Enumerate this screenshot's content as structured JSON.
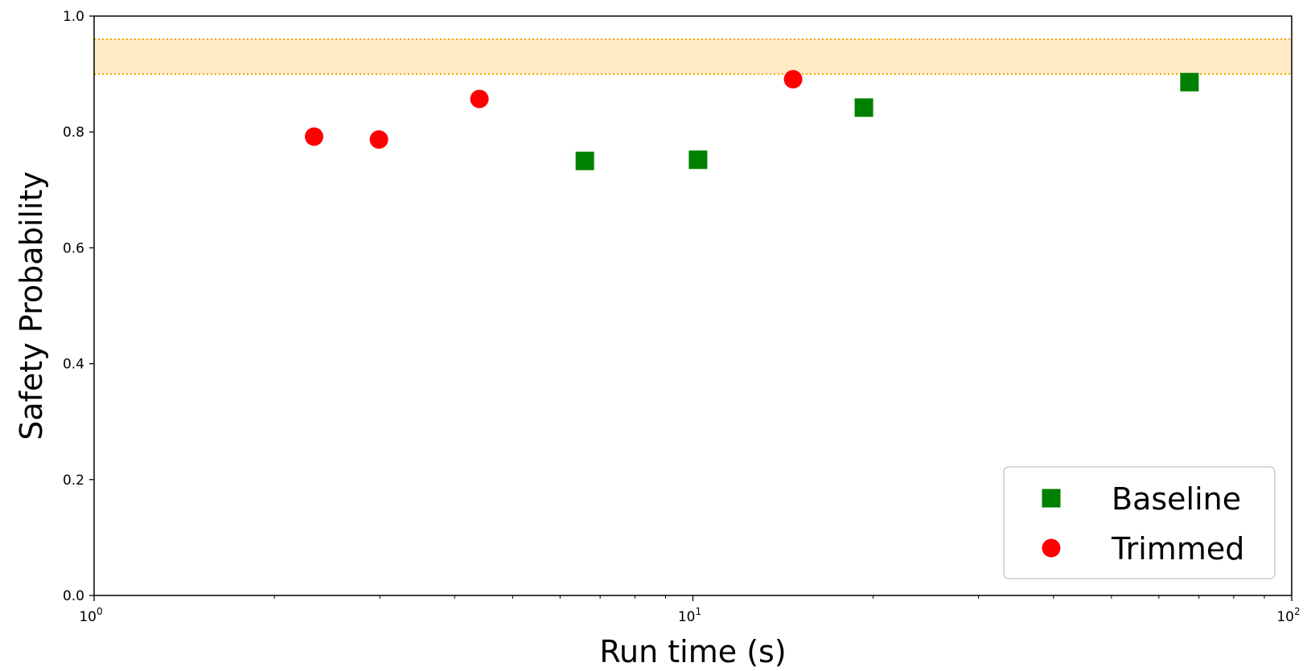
{
  "chart_data": {
    "type": "scatter",
    "title": "",
    "xlabel": "Run time (s)",
    "ylabel": "Safety Probability",
    "xscale": "log",
    "xlim": [
      1,
      100
    ],
    "ylim": [
      0.0,
      1.0
    ],
    "x_ticks": [
      {
        "value": 1,
        "base": "10",
        "exp": "0"
      },
      {
        "value": 10,
        "base": "10",
        "exp": "1"
      },
      {
        "value": 100,
        "base": "10",
        "exp": "2"
      }
    ],
    "y_ticks": [
      {
        "value": 0.0,
        "label": "0.0"
      },
      {
        "value": 0.2,
        "label": "0.2"
      },
      {
        "value": 0.4,
        "label": "0.4"
      },
      {
        "value": 0.6,
        "label": "0.6"
      },
      {
        "value": 0.8,
        "label": "0.8"
      },
      {
        "value": 1.0,
        "label": "1.0"
      }
    ],
    "grid": false,
    "band": {
      "y_low": 0.9,
      "y_high": 0.96,
      "fill": "#ffebc6",
      "line": "#ffa500"
    },
    "legend_position": "bottom-right",
    "series": [
      {
        "name": "Baseline",
        "marker": "square",
        "color": "#008000",
        "points": [
          {
            "x": 6.6,
            "y": 0.75
          },
          {
            "x": 10.2,
            "y": 0.752
          },
          {
            "x": 19.3,
            "y": 0.842
          },
          {
            "x": 67.5,
            "y": 0.886
          }
        ]
      },
      {
        "name": "Trimmed",
        "marker": "circle",
        "color": "#ff0000",
        "points": [
          {
            "x": 2.33,
            "y": 0.792
          },
          {
            "x": 2.99,
            "y": 0.787
          },
          {
            "x": 4.4,
            "y": 0.857
          },
          {
            "x": 14.7,
            "y": 0.891
          }
        ]
      }
    ]
  }
}
